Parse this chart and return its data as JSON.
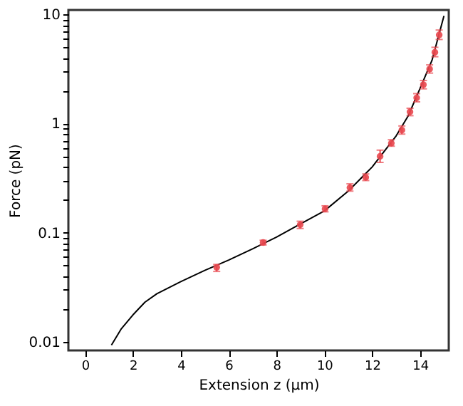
{
  "chart_data": {
    "type": "scatter",
    "xlabel": "Extension z (µm)",
    "ylabel": "Force (pN)",
    "log": "y",
    "grid": false,
    "xlim": [
      -0.7,
      15.2
    ],
    "xticks": [
      0,
      2,
      4,
      6,
      8,
      10,
      12,
      14
    ],
    "ylim": [
      0.0083,
      11
    ],
    "yticks": [
      0.01,
      {
        "value": 0.02,
        "label": null
      },
      {
        "value": 0.03,
        "label": null
      },
      {
        "value": 0.04,
        "label": null
      },
      {
        "value": 0.05,
        "label": null
      },
      {
        "value": 0.06,
        "label": null
      },
      {
        "value": 0.07,
        "label": null
      },
      {
        "value": 0.08,
        "label": null
      },
      {
        "value": 0.09,
        "label": null
      },
      0.1,
      {
        "value": 0.2,
        "label": null
      },
      {
        "value": 0.3,
        "label": null
      },
      {
        "value": 0.4,
        "label": null
      },
      {
        "value": 0.5,
        "label": null
      },
      {
        "value": 0.6,
        "label": null
      },
      {
        "value": 0.7,
        "label": null
      },
      {
        "value": 0.8,
        "label": null
      },
      {
        "value": 0.9,
        "label": null
      },
      1,
      {
        "value": 2,
        "label": null
      },
      {
        "value": 3,
        "label": null
      },
      {
        "value": 4,
        "label": null
      },
      {
        "value": 5,
        "label": null
      },
      {
        "value": 6,
        "label": null
      },
      {
        "value": 7,
        "label": null
      },
      {
        "value": 8,
        "label": null
      },
      {
        "value": 9,
        "label": null
      },
      10
    ],
    "series": [
      {
        "type": "line",
        "line_style": "solid",
        "color": "#000000",
        "x": [
          1.1,
          1.5,
          2,
          2.5,
          3,
          4,
          5,
          6,
          7,
          8,
          9,
          10,
          11,
          12,
          13,
          13.5,
          14,
          14.5,
          15
        ],
        "values": [
          0.0093,
          0.013,
          0.0176,
          0.023,
          0.0275,
          0.0355,
          0.045,
          0.056,
          0.071,
          0.091,
          0.12,
          0.158,
          0.24,
          0.4,
          0.77,
          1.17,
          2.1,
          3.8,
          9.7
        ]
      },
      {
        "marker": "circle",
        "color": "#e8474e",
        "x": [
          5.5,
          7.44,
          8.99,
          10.03,
          11.07,
          11.73,
          12.33,
          12.8,
          13.24,
          13.58,
          13.86,
          14.14,
          14.4,
          14.62,
          14.8
        ],
        "values": [
          0.048,
          0.081,
          0.118,
          0.165,
          0.258,
          0.321,
          0.5,
          0.66,
          0.87,
          1.28,
          1.72,
          2.27,
          3.16,
          4.5,
          6.5
        ],
        "errors": [
          [
            0.044,
            0.051
          ],
          [
            0.077,
            0.085
          ],
          [
            0.109,
            0.127
          ],
          [
            0.155,
            0.176
          ],
          [
            0.24,
            0.28
          ],
          [
            0.3,
            0.345
          ],
          [
            0.44,
            0.57
          ],
          [
            0.62,
            0.71
          ],
          [
            0.8,
            0.95
          ],
          [
            1.18,
            1.38
          ],
          [
            1.58,
            1.88
          ],
          [
            2.08,
            2.48
          ],
          [
            2.9,
            3.45
          ],
          [
            4.1,
            5.0
          ],
          [
            5.9,
            7.2
          ]
        ]
      }
    ]
  }
}
